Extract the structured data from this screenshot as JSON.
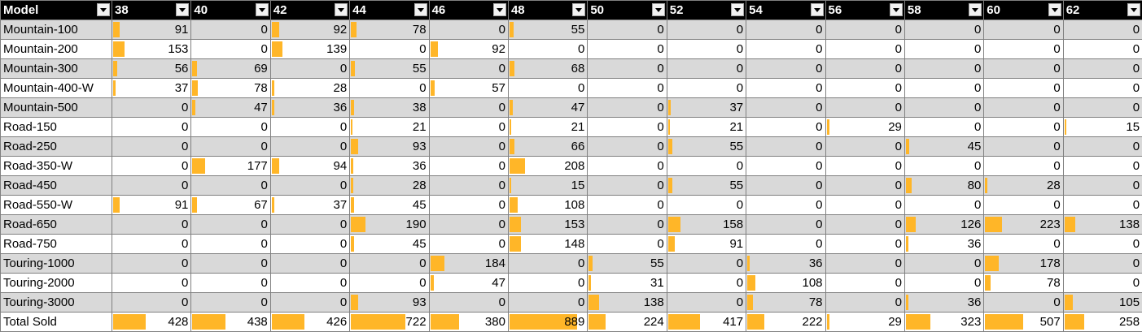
{
  "header": {
    "model_label": "Model",
    "sizes": [
      "38",
      "40",
      "42",
      "44",
      "46",
      "48",
      "50",
      "52",
      "54",
      "56",
      "58",
      "60",
      "62"
    ]
  },
  "rows": [
    {
      "model": "Mountain-100",
      "values": [
        91,
        0,
        92,
        78,
        0,
        55,
        0,
        0,
        0,
        0,
        0,
        0,
        0
      ]
    },
    {
      "model": "Mountain-200",
      "values": [
        153,
        0,
        139,
        0,
        92,
        0,
        0,
        0,
        0,
        0,
        0,
        0,
        0
      ]
    },
    {
      "model": "Mountain-300",
      "values": [
        56,
        69,
        0,
        55,
        0,
        68,
        0,
        0,
        0,
        0,
        0,
        0,
        0
      ]
    },
    {
      "model": "Mountain-400-W",
      "values": [
        37,
        78,
        28,
        0,
        57,
        0,
        0,
        0,
        0,
        0,
        0,
        0,
        0
      ]
    },
    {
      "model": "Mountain-500",
      "values": [
        0,
        47,
        36,
        38,
        0,
        47,
        0,
        37,
        0,
        0,
        0,
        0,
        0
      ]
    },
    {
      "model": "Road-150",
      "values": [
        0,
        0,
        0,
        21,
        0,
        21,
        0,
        21,
        0,
        29,
        0,
        0,
        15
      ]
    },
    {
      "model": "Road-250",
      "values": [
        0,
        0,
        0,
        93,
        0,
        66,
        0,
        55,
        0,
        0,
        45,
        0,
        0
      ]
    },
    {
      "model": "Road-350-W",
      "values": [
        0,
        177,
        94,
        36,
        0,
        208,
        0,
        0,
        0,
        0,
        0,
        0,
        0
      ]
    },
    {
      "model": "Road-450",
      "values": [
        0,
        0,
        0,
        28,
        0,
        15,
        0,
        55,
        0,
        0,
        80,
        28,
        0
      ]
    },
    {
      "model": "Road-550-W",
      "values": [
        91,
        67,
        37,
        45,
        0,
        108,
        0,
        0,
        0,
        0,
        0,
        0,
        0
      ]
    },
    {
      "model": "Road-650",
      "values": [
        0,
        0,
        0,
        190,
        0,
        153,
        0,
        158,
        0,
        0,
        126,
        223,
        138
      ]
    },
    {
      "model": "Road-750",
      "values": [
        0,
        0,
        0,
        45,
        0,
        148,
        0,
        91,
        0,
        0,
        36,
        0,
        0
      ]
    },
    {
      "model": "Touring-1000",
      "values": [
        0,
        0,
        0,
        0,
        184,
        0,
        55,
        0,
        36,
        0,
        0,
        178,
        0
      ]
    },
    {
      "model": "Touring-2000",
      "values": [
        0,
        0,
        0,
        0,
        47,
        0,
        31,
        0,
        108,
        0,
        0,
        78,
        0
      ]
    },
    {
      "model": "Touring-3000",
      "values": [
        0,
        0,
        0,
        93,
        0,
        0,
        138,
        0,
        78,
        0,
        36,
        0,
        105
      ]
    },
    {
      "model": "Total Sold",
      "values": [
        428,
        438,
        426,
        722,
        380,
        889,
        224,
        417,
        222,
        29,
        323,
        507,
        258
      ]
    }
  ],
  "data_bar_max": 1000,
  "colors": {
    "header_bg": "#000000",
    "header_text": "#ffffff",
    "band_row": "#d9d9d9",
    "data_bar": "#ffb628",
    "grid_line": "#808080"
  },
  "icons": {
    "filter": "chevron-down-icon"
  }
}
